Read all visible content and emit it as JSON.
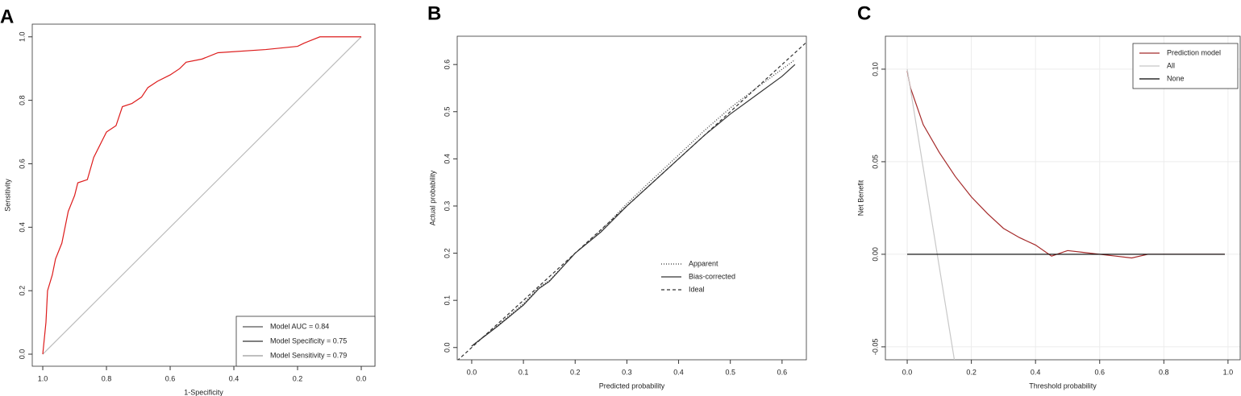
{
  "chart_data": [
    {
      "type": "line",
      "panel_label": "A",
      "x_label": "1-Specificity",
      "y_label": "Sensitivity",
      "xlim": [
        1.033,
        -0.043
      ],
      "ylim": [
        -0.038,
        1.04
      ],
      "xticks": [
        {
          "value": 1,
          "label": "1.0"
        },
        0.8,
        0.6,
        0.4,
        0.2,
        {
          "value": 0,
          "label": "0.0"
        }
      ],
      "yticks": [
        {
          "value": 0,
          "label": "0.0"
        },
        0.2,
        0.4,
        0.6,
        0.8,
        {
          "value": 1,
          "label": "1.0"
        }
      ],
      "grid": false,
      "legend_position": "bottom-right",
      "legend_entries": [
        {
          "label": "Model AUC = 0.84",
          "color": "#555555"
        },
        {
          "label": "Model Specificity = 0.75",
          "color": "#333333"
        },
        {
          "label": "Model Sensitivity = 0.79",
          "color": "#999999"
        }
      ],
      "series": [
        {
          "color": "#bbbbbb",
          "dash": "solid",
          "x": [
            1,
            0
          ],
          "values": [
            0,
            1
          ]
        },
        {
          "color": "#dd1c1c",
          "dash": "solid",
          "x": [
            1,
            0.99,
            0.985,
            0.97,
            0.96,
            0.94,
            0.92,
            0.9,
            0.89,
            0.86,
            0.84,
            0.82,
            0.8,
            0.77,
            0.75,
            0.72,
            0.69,
            0.67,
            0.64,
            0.6,
            0.57,
            0.55,
            0.5,
            0.45,
            0.3,
            0.2,
            0.18,
            0.13,
            0
          ],
          "values": [
            0,
            0.1,
            0.2,
            0.25,
            0.3,
            0.35,
            0.45,
            0.5,
            0.54,
            0.55,
            0.62,
            0.66,
            0.7,
            0.72,
            0.78,
            0.79,
            0.81,
            0.84,
            0.86,
            0.88,
            0.9,
            0.92,
            0.93,
            0.95,
            0.96,
            0.97,
            0.98,
            1,
            1
          ]
        }
      ]
    },
    {
      "type": "line",
      "panel_label": "B",
      "x_label": "Predicted probability",
      "y_label": "Actual probability",
      "xlim": [
        -0.028,
        0.647
      ],
      "ylim": [
        -0.026,
        0.66
      ],
      "xticks": [
        {
          "value": 0,
          "label": "0.0"
        },
        0.1,
        0.2,
        0.3,
        0.4,
        0.5,
        0.6
      ],
      "yticks": [
        {
          "value": 0,
          "label": "0.0"
        },
        0.1,
        0.2,
        0.3,
        0.4,
        0.5,
        0.6
      ],
      "grid": false,
      "legend_position": "lower-center",
      "series": [
        {
          "name": "Apparent",
          "color": "#333333",
          "dash": "dotted",
          "x": [
            0,
            0.05,
            0.1,
            0.13,
            0.15,
            0.2,
            0.25,
            0.3,
            0.35,
            0.4,
            0.45,
            0.5,
            0.55,
            0.6,
            0.625
          ],
          "values": [
            0.003,
            0.047,
            0.093,
            0.128,
            0.142,
            0.2,
            0.248,
            0.305,
            0.357,
            0.408,
            0.46,
            0.508,
            0.55,
            0.59,
            0.61
          ]
        },
        {
          "name": "Bias-corrected",
          "color": "#333333",
          "dash": "solid",
          "x": [
            0,
            0.05,
            0.1,
            0.13,
            0.15,
            0.2,
            0.25,
            0.3,
            0.35,
            0.4,
            0.45,
            0.5,
            0.55,
            0.6,
            0.625
          ],
          "values": [
            0.003,
            0.045,
            0.09,
            0.125,
            0.14,
            0.2,
            0.245,
            0.3,
            0.35,
            0.4,
            0.45,
            0.495,
            0.535,
            0.575,
            0.6
          ]
        },
        {
          "name": "Ideal",
          "color": "#333333",
          "dash": "dashed",
          "x": [
            -0.028,
            0.647
          ],
          "values": [
            -0.028,
            0.647
          ]
        }
      ]
    },
    {
      "type": "line",
      "panel_label": "C",
      "x_label": "Threshold probability",
      "y_label": "Net Benefit",
      "xlim": [
        -0.068,
        1.038
      ],
      "ylim": [
        -0.057,
        0.1178
      ],
      "xticks": [
        {
          "value": 0,
          "label": "0.0"
        },
        0.2,
        0.4,
        0.6,
        0.8,
        {
          "value": 1,
          "label": "1.0"
        }
      ],
      "yticks": [
        -0.05,
        {
          "value": 0,
          "label": "0.00"
        },
        0.05,
        {
          "value": 0.1,
          "label": "0.10"
        }
      ],
      "grid": true,
      "legend_position": "top-right",
      "series": [
        {
          "name": "Prediction model",
          "color": "#a52a2a",
          "dash": "solid",
          "x": [
            0,
            0.01,
            0.05,
            0.1,
            0.15,
            0.2,
            0.25,
            0.3,
            0.35,
            0.4,
            0.45,
            0.5,
            0.55,
            0.6,
            0.65,
            0.7,
            0.75,
            0.99
          ],
          "values": [
            0.099,
            0.09,
            0.07,
            0.055,
            0.042,
            0.031,
            0.022,
            0.014,
            0.009,
            0.005,
            -0.001,
            0.002,
            0.001,
            0,
            -0.001,
            -0.002,
            0,
            0
          ]
        },
        {
          "name": "All",
          "color": "#c8c8c8",
          "dash": "solid",
          "x": [
            0,
            0.147
          ],
          "values": [
            0.1,
            -0.057
          ]
        },
        {
          "name": "None",
          "color": "#000000",
          "dash": "solid",
          "x": [
            0,
            0.99
          ],
          "values": [
            0,
            0
          ]
        }
      ]
    }
  ]
}
